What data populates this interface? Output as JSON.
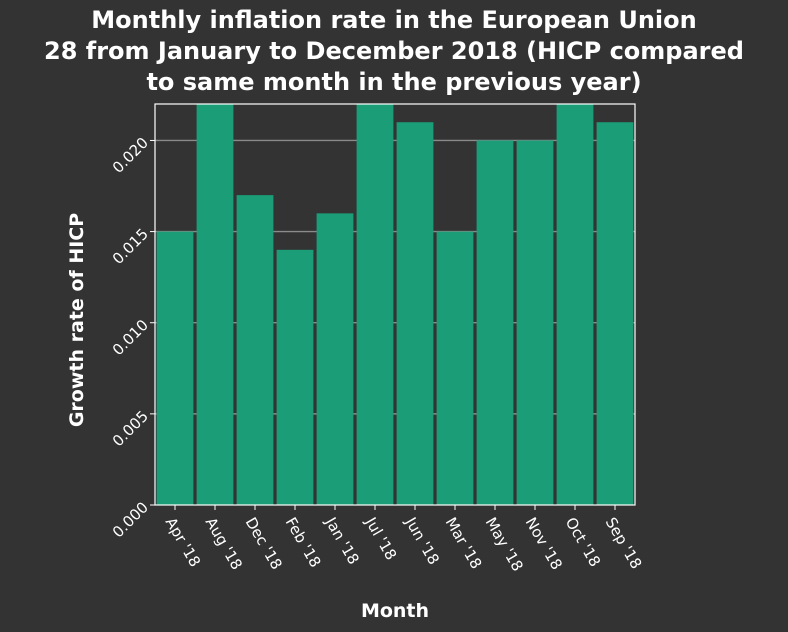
{
  "chart_data": {
    "type": "bar",
    "title_lines": [
      "Monthly inflation rate in the European Union",
      "28 from January to December 2018 (HICP compared",
      "to same month in the previous year)"
    ],
    "xlabel": "Month",
    "ylabel": "Growth rate of HICP",
    "categories": [
      "Apr '18",
      "Aug '18",
      "Dec '18",
      "Feb '18",
      "Jan '18",
      "Jul '18",
      "Jun '18",
      "Mar '18",
      "May '18",
      "Nov '18",
      "Oct '18",
      "Sep '18"
    ],
    "values": [
      0.015,
      0.022,
      0.017,
      0.014,
      0.016,
      0.022,
      0.021,
      0.015,
      0.02,
      0.02,
      0.022,
      0.021
    ],
    "ylim": [
      0,
      0.022
    ],
    "yticks": [
      "0.000",
      "0.005",
      "0.010",
      "0.015",
      "0.020"
    ],
    "grid": true,
    "bar_color": "#1b9e77",
    "background_color": "#333333",
    "text_color": "#ffffff",
    "grid_color": "#8a8a8a"
  }
}
